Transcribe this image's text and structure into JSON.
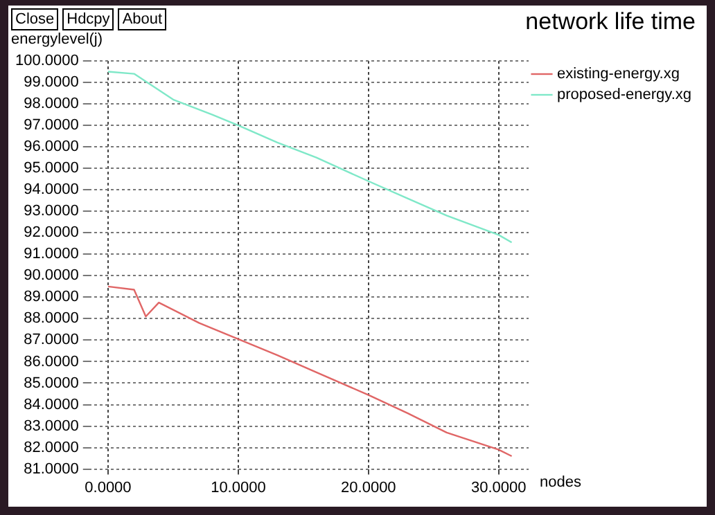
{
  "chart_data": {
    "type": "line",
    "title": "network life time",
    "xlabel": "nodes",
    "ylabel": "energylevel(j)",
    "annotations": [
      "Close",
      "Hdcpy",
      "About"
    ],
    "series": [
      {
        "name": "existing-energy.xg",
        "color": "#e06666",
        "x": [
          0,
          2,
          2.9,
          3.9,
          7,
          10,
          13,
          16,
          20,
          23,
          26,
          30,
          31
        ],
        "values": [
          89.5,
          89.35,
          88.1,
          88.75,
          87.8,
          87.05,
          86.3,
          85.5,
          84.45,
          83.6,
          82.7,
          81.9,
          81.6
        ]
      },
      {
        "name": "proposed-energy.xg",
        "color": "#7fe8c8",
        "x": [
          0,
          2,
          5,
          8,
          10,
          13,
          16,
          20,
          23,
          26,
          30,
          31
        ],
        "values": [
          99.5,
          99.4,
          98.2,
          97.5,
          97.0,
          96.2,
          95.5,
          94.4,
          93.6,
          92.8,
          91.9,
          91.55
        ]
      }
    ],
    "xlim": [
      -1.5,
      32.3
    ],
    "ylim": [
      81,
      100
    ],
    "xticks": [
      {
        "value": 0,
        "label": "0.0000"
      },
      {
        "value": 10,
        "label": "10.0000"
      },
      {
        "value": 20,
        "label": "20.0000"
      },
      {
        "value": 30,
        "label": "30.0000"
      }
    ],
    "yticks": [
      {
        "value": 81,
        "label": "81.0000"
      },
      {
        "value": 82,
        "label": "82.0000"
      },
      {
        "value": 83,
        "label": "83.0000"
      },
      {
        "value": 84,
        "label": "84.0000"
      },
      {
        "value": 85,
        "label": "85.0000"
      },
      {
        "value": 86,
        "label": "86.0000"
      },
      {
        "value": 87,
        "label": "87.0000"
      },
      {
        "value": 88,
        "label": "88.0000"
      },
      {
        "value": 89,
        "label": "89.0000"
      },
      {
        "value": 90,
        "label": "90.0000"
      },
      {
        "value": 91,
        "label": "91.0000"
      },
      {
        "value": 92,
        "label": "92.0000"
      },
      {
        "value": 93,
        "label": "93.0000"
      },
      {
        "value": 94,
        "label": "94.0000"
      },
      {
        "value": 95,
        "label": "95.0000"
      },
      {
        "value": 96,
        "label": "96.0000"
      },
      {
        "value": 97,
        "label": "97.0000"
      },
      {
        "value": 98,
        "label": "98.0000"
      },
      {
        "value": 99,
        "label": "99.0000"
      },
      {
        "value": 100,
        "label": "100.0000"
      }
    ],
    "grid": true,
    "legend": "top right",
    "marker": "none",
    "line_style": "solid"
  }
}
